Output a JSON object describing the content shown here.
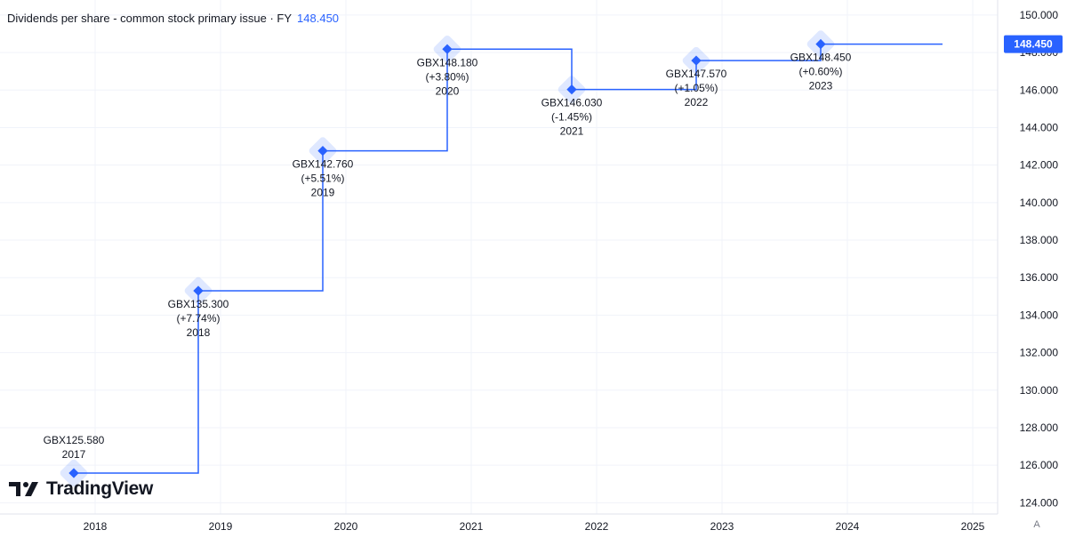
{
  "header": {
    "title": "Dividends per share - common stock primary issue · FY",
    "last_value": "148.450"
  },
  "logo": {
    "text": "TradingView"
  },
  "auto_scale_label": "A",
  "colors": {
    "accent": "#2962ff",
    "text": "#131722",
    "grid": "#f0f3fa",
    "muted": "#787b86"
  },
  "chart_data": {
    "type": "line",
    "step": true,
    "title": "Dividends per share - common stock primary issue · FY",
    "x_ticks": [
      "2018",
      "2019",
      "2020",
      "2021",
      "2022",
      "2023",
      "2024",
      "2025"
    ],
    "y_ticks": [
      "150.000",
      "148.000",
      "146.000",
      "144.000",
      "142.000",
      "140.000",
      "138.000",
      "136.000",
      "134.000",
      "132.000",
      "130.000",
      "128.000",
      "126.000",
      "124.000"
    ],
    "ylim": [
      123.4,
      150.8
    ],
    "series": [
      {
        "points": [
          {
            "fy": "2017",
            "value": 125.58,
            "label": "GBX125.580",
            "change": ""
          },
          {
            "fy": "2018",
            "value": 135.3,
            "label": "GBX135.300",
            "change": "(+7.74%)"
          },
          {
            "fy": "2019",
            "value": 142.76,
            "label": "GBX142.760",
            "change": "(+5.51%)"
          },
          {
            "fy": "2020",
            "value": 148.18,
            "label": "GBX148.180",
            "change": "(+3.80%)"
          },
          {
            "fy": "2021",
            "value": 146.03,
            "label": "GBX146.030",
            "change": "(-1.45%)"
          },
          {
            "fy": "2022",
            "value": 147.57,
            "label": "GBX147.570",
            "change": "(+1.05%)"
          },
          {
            "fy": "2023",
            "value": 148.45,
            "label": "GBX148.450",
            "change": "(+0.60%)"
          }
        ]
      }
    ],
    "last_value_label": "148.450",
    "grid": true
  }
}
